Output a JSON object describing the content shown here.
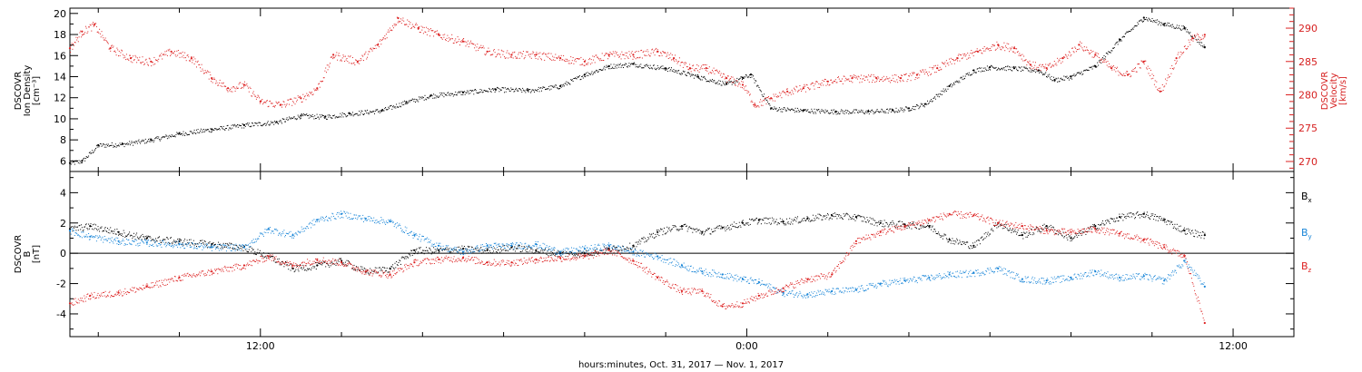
{
  "colors": {
    "black": "#000000",
    "red": "#dd2222",
    "blue": "#1a86d8",
    "frame": "#000000"
  },
  "xaxis": {
    "title": "hours:minutes, Oct. 31, 2017 — Nov.  1, 2017",
    "range_hours": [
      7.3,
      37.5
    ],
    "major_ticks": [
      {
        "hour": 12,
        "label": "12:00"
      },
      {
        "hour": 24,
        "label": "0:00"
      },
      {
        "hour": 36,
        "label": "12:00"
      }
    ],
    "minor_step_hours": 2
  },
  "chart_data": [
    {
      "type": "scatter",
      "ylabel_lines": [
        "DSCOVR",
        "Ion Density",
        "[cm⁻³]"
      ],
      "ylabel_right_lines": [
        "DSCOVR",
        "Velocity",
        "[km/s]"
      ],
      "ylim": [
        5,
        20.5
      ],
      "ylim_right": [
        268.5,
        293
      ],
      "yticks": [
        {
          "value": 6,
          "label": "6"
        },
        {
          "value": 8,
          "label": "8"
        },
        {
          "value": 10,
          "label": "10"
        },
        {
          "value": 12,
          "label": "12"
        },
        {
          "value": 14,
          "label": "14"
        },
        {
          "value": 16,
          "label": "16"
        },
        {
          "value": 18,
          "label": "18"
        },
        {
          "value": 20,
          "label": "20"
        }
      ],
      "yticks_right": [
        {
          "value": 270,
          "label": "270"
        },
        {
          "value": 275,
          "label": "275"
        },
        {
          "value": 280,
          "label": "280"
        },
        {
          "value": 285,
          "label": "285"
        },
        {
          "value": 290,
          "label": "290"
        }
      ],
      "series": [
        {
          "axis": "left",
          "color": "black",
          "x": [
            7.3,
            7.6,
            8.0,
            8.6,
            9.3,
            10.0,
            10.8,
            11.6,
            12.4,
            13.0,
            13.6,
            14.2,
            15.0,
            15.6,
            16.2,
            17.0,
            17.8,
            18.6,
            19.4,
            20.0,
            20.6,
            21.2,
            22.0,
            22.8,
            23.5,
            23.9,
            24.1,
            24.6,
            25.4,
            26.2,
            27.0,
            27.6,
            28.0,
            28.4,
            29.0,
            29.6,
            30.0,
            30.6,
            31.2,
            31.6,
            32.0,
            32.6,
            33.2,
            33.8,
            34.3,
            34.8,
            35.3
          ],
          "y": [
            5.8,
            6.0,
            7.5,
            7.6,
            8.0,
            8.6,
            9.0,
            9.4,
            9.7,
            10.3,
            10.2,
            10.5,
            10.8,
            11.6,
            12.2,
            12.5,
            12.8,
            12.7,
            13.1,
            14.2,
            15.0,
            15.2,
            14.8,
            14.0,
            13.3,
            13.9,
            14.2,
            11.0,
            10.8,
            10.7,
            10.7,
            10.8,
            11.0,
            11.4,
            13.1,
            14.6,
            14.9,
            14.8,
            14.6,
            13.7,
            14.0,
            15.0,
            17.5,
            19.6,
            19.0,
            18.6,
            16.8
          ]
        },
        {
          "axis": "right",
          "color": "red",
          "x": [
            7.3,
            7.6,
            7.9,
            8.3,
            8.8,
            9.3,
            9.8,
            10.3,
            10.8,
            11.2,
            11.6,
            12.0,
            12.5,
            13.0,
            13.4,
            13.8,
            14.4,
            14.9,
            15.4,
            15.9,
            16.4,
            17.0,
            17.6,
            18.2,
            18.8,
            19.4,
            20.0,
            20.6,
            21.2,
            21.8,
            22.2,
            22.6,
            23.0,
            23.5,
            23.9,
            24.2,
            24.6,
            25.0,
            25.4,
            26.0,
            26.6,
            27.2,
            27.8,
            28.2,
            28.7,
            29.2,
            29.7,
            30.2,
            30.6,
            31.0,
            31.4,
            31.8,
            32.2,
            32.6,
            33.0,
            33.4,
            33.8,
            34.2,
            34.6,
            35.0,
            35.3
          ],
          "y": [
            287.0,
            289.5,
            290.5,
            287.0,
            285.5,
            285.0,
            286.5,
            285.5,
            282.5,
            281.0,
            281.5,
            279.0,
            278.5,
            279.5,
            281.0,
            286.0,
            285.0,
            287.5,
            291.5,
            290.0,
            289.0,
            288.0,
            286.5,
            286.0,
            286.0,
            285.5,
            285.0,
            286.0,
            286.0,
            286.5,
            285.5,
            284.0,
            284.0,
            282.5,
            281.5,
            278.5,
            279.5,
            280.5,
            281.0,
            282.0,
            282.5,
            282.5,
            282.5,
            283.0,
            284.0,
            285.5,
            286.5,
            287.5,
            287.0,
            284.5,
            284.0,
            285.5,
            287.5,
            286.0,
            284.0,
            283.0,
            285.0,
            280.5,
            285.5,
            288.5,
            289.0
          ]
        }
      ]
    },
    {
      "type": "scatter",
      "ylabel_lines": [
        "DSCOVR",
        "B",
        "[nT]"
      ],
      "ylim": [
        -5.5,
        5.4
      ],
      "yticks": [
        {
          "value": -4,
          "label": "-4"
        },
        {
          "value": -2,
          "label": "-2"
        },
        {
          "value": 0,
          "label": "0"
        },
        {
          "value": 2,
          "label": "2"
        },
        {
          "value": 4,
          "label": "4"
        }
      ],
      "zero_line": true,
      "legend_position": "right",
      "series": [
        {
          "name": "B",
          "sub": "x",
          "color": "black",
          "x": [
            7.3,
            7.8,
            8.5,
            9.2,
            10.0,
            10.8,
            11.6,
            12.2,
            12.8,
            13.4,
            14.0,
            14.6,
            15.2,
            15.8,
            16.4,
            17.0,
            17.6,
            18.2,
            18.8,
            19.4,
            20.0,
            20.6,
            21.2,
            21.8,
            22.4,
            22.9,
            23.4,
            23.9,
            24.3,
            24.9,
            25.5,
            26.1,
            26.7,
            27.3,
            27.9,
            28.5,
            29.0,
            29.6,
            30.2,
            30.8,
            31.4,
            32.0,
            32.6,
            33.2,
            33.8,
            34.3,
            34.8,
            35.3
          ],
          "y": [
            1.6,
            1.8,
            1.4,
            1.0,
            0.8,
            0.6,
            0.4,
            -0.2,
            -1.0,
            -0.8,
            -0.5,
            -1.2,
            -1.0,
            0.2,
            0.2,
            0.3,
            0.2,
            0.4,
            0.2,
            0.0,
            0.0,
            0.3,
            0.5,
            1.4,
            1.8,
            1.4,
            1.7,
            2.0,
            2.2,
            2.1,
            2.3,
            2.5,
            2.4,
            2.0,
            1.9,
            1.8,
            0.9,
            0.5,
            2.0,
            1.2,
            1.8,
            1.0,
            1.8,
            2.4,
            2.6,
            2.2,
            1.5,
            1.2
          ]
        },
        {
          "name": "B",
          "sub": "y",
          "color": "blue",
          "x": [
            7.3,
            7.8,
            8.5,
            9.2,
            10.0,
            10.8,
            11.6,
            12.2,
            12.8,
            13.4,
            14.0,
            14.6,
            15.2,
            15.8,
            16.4,
            17.0,
            17.6,
            18.2,
            18.8,
            19.4,
            20.0,
            20.6,
            21.2,
            21.8,
            22.4,
            22.9,
            23.4,
            23.9,
            24.3,
            24.9,
            25.5,
            26.1,
            26.7,
            27.3,
            27.9,
            28.5,
            29.0,
            29.6,
            30.2,
            30.8,
            31.4,
            32.0,
            32.6,
            33.2,
            33.8,
            34.3,
            34.8,
            35.3
          ],
          "y": [
            1.5,
            1.1,
            0.8,
            0.7,
            0.6,
            0.4,
            0.4,
            1.6,
            1.2,
            2.2,
            2.6,
            2.3,
            2.1,
            1.2,
            0.5,
            0.1,
            0.5,
            0.5,
            0.6,
            0.1,
            0.3,
            0.5,
            0.1,
            -0.2,
            -0.8,
            -1.2,
            -1.4,
            -1.7,
            -1.9,
            -2.6,
            -2.7,
            -2.5,
            -2.4,
            -2.0,
            -1.8,
            -1.6,
            -1.4,
            -1.3,
            -1.0,
            -1.7,
            -1.8,
            -1.6,
            -1.2,
            -1.6,
            -1.5,
            -1.8,
            -0.5,
            -2.2
          ]
        },
        {
          "name": "B",
          "sub": "z",
          "color": "red",
          "x": [
            7.3,
            7.8,
            8.5,
            9.2,
            10.0,
            10.8,
            11.6,
            12.2,
            12.8,
            13.4,
            14.0,
            14.6,
            15.2,
            15.8,
            16.4,
            17.0,
            17.6,
            18.2,
            18.8,
            19.4,
            20.0,
            20.6,
            21.2,
            21.8,
            22.4,
            22.9,
            23.4,
            23.9,
            24.3,
            24.9,
            25.5,
            26.1,
            26.7,
            27.3,
            27.9,
            28.5,
            29.0,
            29.6,
            30.2,
            30.8,
            31.4,
            32.0,
            32.6,
            33.2,
            33.8,
            34.3,
            34.8,
            35.3
          ],
          "y": [
            -3.3,
            -2.8,
            -2.6,
            -2.2,
            -1.6,
            -1.2,
            -0.8,
            -0.2,
            -0.8,
            -0.4,
            -0.6,
            -1.2,
            -1.4,
            -0.6,
            -0.4,
            -0.3,
            -0.6,
            -0.6,
            -0.4,
            -0.3,
            -0.2,
            0.2,
            -0.5,
            -1.6,
            -2.5,
            -2.5,
            -3.5,
            -3.3,
            -2.8,
            -2.3,
            -1.7,
            -1.4,
            0.8,
            1.4,
            1.8,
            2.2,
            2.6,
            2.5,
            2.0,
            1.8,
            1.5,
            1.4,
            1.6,
            1.3,
            0.9,
            0.4,
            -0.2,
            -4.6
          ]
        }
      ]
    }
  ]
}
